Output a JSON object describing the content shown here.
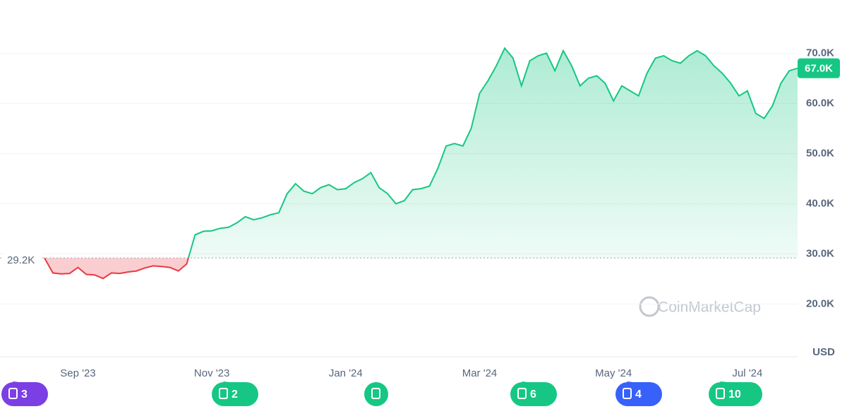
{
  "chart_data": {
    "type": "line",
    "categories": [
      null,
      null,
      null,
      null,
      "Sep '23",
      null,
      null,
      null,
      null,
      null,
      null,
      null,
      null,
      null,
      null,
      null,
      null,
      null,
      null,
      null,
      "Nov '23",
      null,
      null,
      null,
      null,
      null,
      null,
      null,
      null,
      null,
      null,
      null,
      null,
      null,
      null,
      null,
      "Jan '24",
      null,
      null,
      null,
      null,
      null,
      null,
      null,
      null,
      null,
      null,
      null,
      null,
      null,
      null,
      null,
      "Mar '24",
      null,
      null,
      null,
      null,
      null,
      null,
      null,
      null,
      null,
      null,
      null,
      null,
      null,
      null,
      null,
      "May '24",
      null,
      null,
      null,
      null,
      null,
      null,
      null,
      null,
      null,
      null,
      null,
      null,
      null,
      null,
      null,
      "Jul '24",
      null,
      null,
      null,
      null,
      null,
      null
    ],
    "series": [
      {
        "values": [
          29200,
          26200,
          26000,
          26100,
          27300,
          25900,
          25800,
          25100,
          26200,
          26100,
          26400,
          26600,
          27200,
          27600,
          27500,
          27300,
          26600,
          28000,
          33800,
          34500,
          34600,
          35100,
          35300,
          36200,
          37400,
          36800,
          37200,
          37800,
          38200,
          42000,
          44000,
          42500,
          42000,
          43200,
          43800,
          42800,
          43000,
          44200,
          45000,
          46200,
          43200,
          42000,
          40000,
          40600,
          42800,
          43000,
          43500,
          47000,
          51500,
          52000,
          51500,
          55000,
          62000,
          64500,
          67500,
          71000,
          69000,
          63500,
          68500,
          69500,
          70000,
          66500,
          70500,
          67500,
          63500,
          65000,
          65500,
          64000,
          60500,
          63500,
          62500,
          61500,
          66000,
          69000,
          69500,
          68500,
          68000,
          69500,
          70500,
          69500,
          67500,
          66000,
          64000,
          61500,
          62500,
          58000,
          57000,
          59500,
          64000,
          66500,
          67000
        ]
      }
    ],
    "current_label": "67.0K",
    "baseline": {
      "value": 29200,
      "label": "29.2K"
    },
    "color_up": "#16c784",
    "color_down": "#ea3943",
    "ylim": [
      9500,
      79900
    ],
    "yticks": [
      {
        "value": 20000,
        "label": "20.0K"
      },
      {
        "value": 30000,
        "label": "30.0K"
      },
      {
        "value": 40000,
        "label": "40.0K"
      },
      {
        "value": 50000,
        "label": "50.0K"
      },
      {
        "value": 60000,
        "label": "60.0K"
      },
      {
        "value": 70000,
        "label": "70.0K"
      }
    ],
    "grid": true,
    "unit_label": "USD",
    "watermark": "CoinMarketCap"
  },
  "events": [
    {
      "label": "3",
      "color": "#7b3fe4"
    },
    {
      "label": "2",
      "color": "#16c784"
    },
    {
      "color": "#16c784"
    },
    {
      "label": "6",
      "color": "#16c784"
    },
    {
      "label": "4",
      "color": "#3861fb"
    },
    {
      "label": "10",
      "color": "#16c784"
    }
  ]
}
